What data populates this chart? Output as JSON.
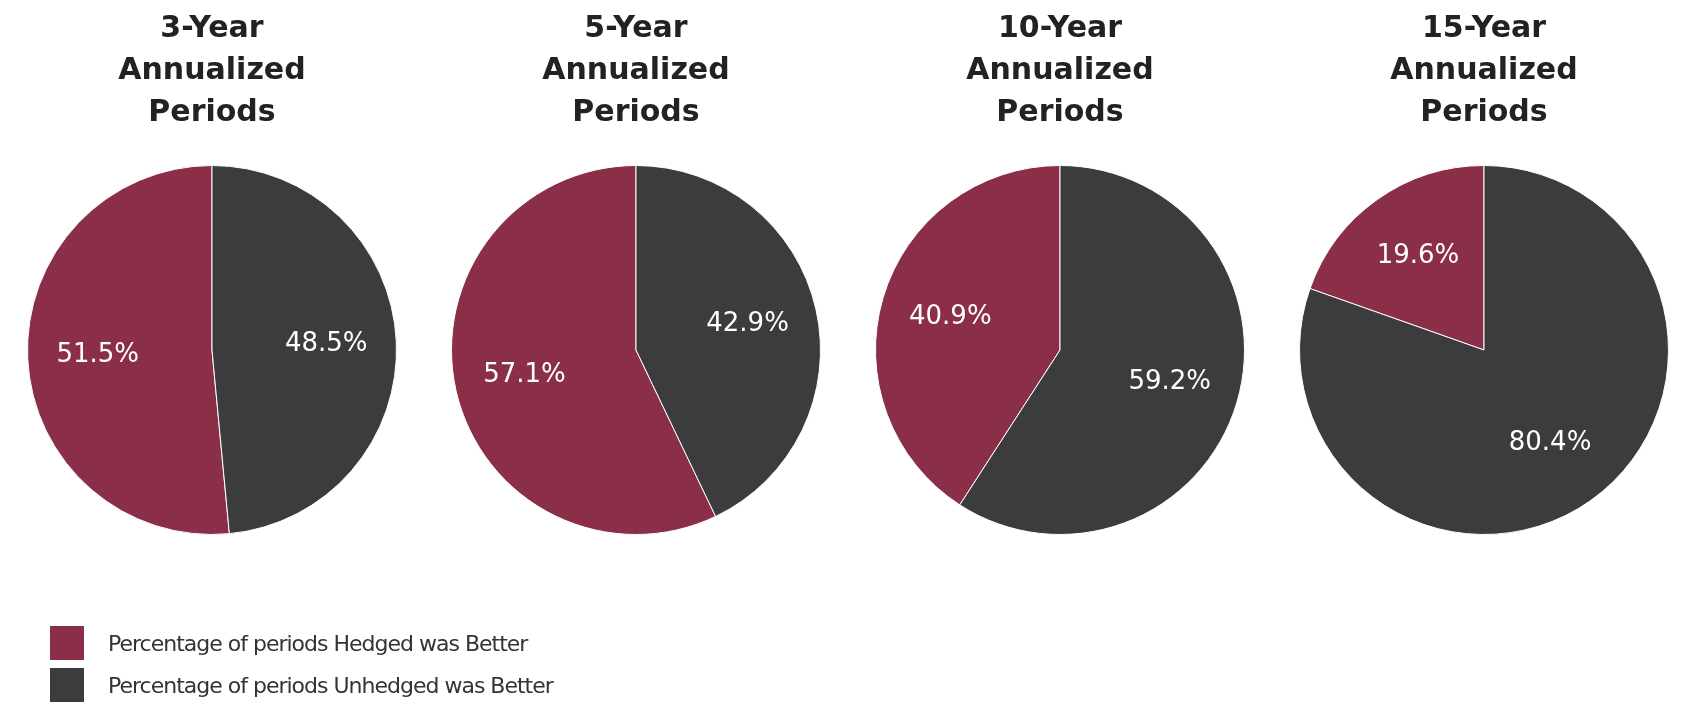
{
  "chart_data": [
    {
      "type": "pie",
      "title": "3-Year Annualized Periods",
      "categories": [
        "Percentage of periods Hedged was Better",
        "Percentage of periods Unhedged was Better"
      ],
      "values": [
        51.5,
        48.5
      ],
      "colors": [
        "#8b2e47",
        "#3c3c3e"
      ],
      "value_labels": [
        "51.5%",
        "48.5%"
      ],
      "legend": "bottom"
    },
    {
      "type": "pie",
      "title": "5-Year Annualized Periods",
      "categories": [
        null,
        null
      ],
      "values": [
        57.1,
        42.9
      ],
      "colors": [
        "#8b2e47",
        "#3c3c3e"
      ],
      "value_labels": [
        "57.1%",
        "42.9%"
      ]
    },
    {
      "type": "pie",
      "title": "10-Year Annualized Periods",
      "categories": [
        null,
        null
      ],
      "values": [
        40.9,
        59.2
      ],
      "colors": [
        "#8b2e47",
        "#3c3c3e"
      ],
      "value_labels": [
        "40.9%",
        "59.2%"
      ]
    },
    {
      "type": "pie",
      "title": "15-Year Annualized Periods",
      "categories": [
        null,
        null
      ],
      "values": [
        19.6,
        80.4
      ],
      "colors": [
        "#8b2e47",
        "#3c3c3e"
      ],
      "value_labels": [
        "19.6%",
        "80.4%"
      ]
    }
  ]
}
